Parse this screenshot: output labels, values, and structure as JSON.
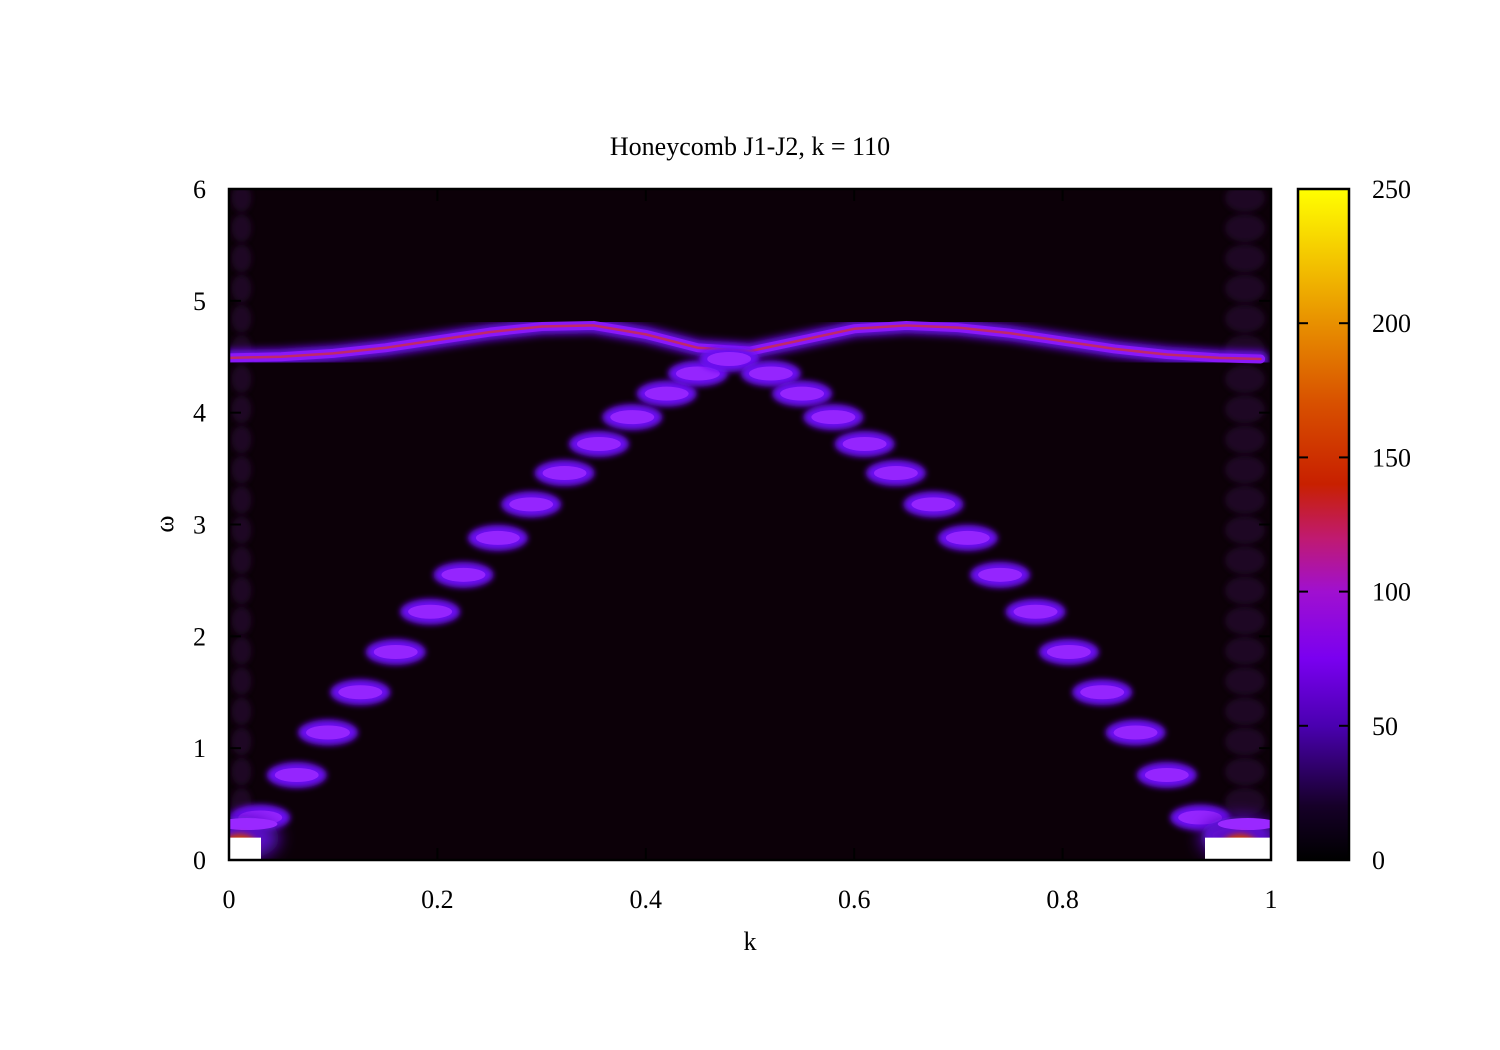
{
  "chart_data": {
    "type": "heatmap",
    "title": "Honeycomb J1-J2, k = 110",
    "xlabel": "k",
    "ylabel": "ω",
    "xlim": [
      0,
      1
    ],
    "ylim": [
      0,
      6
    ],
    "xticks": [
      "0",
      "0.2",
      "0.4",
      "0.6",
      "0.8",
      "1"
    ],
    "yticks": [
      "0",
      "1",
      "2",
      "3",
      "4",
      "5",
      "6"
    ],
    "colorbar": {
      "range": [
        0,
        250
      ],
      "ticks": [
        "0",
        "50",
        "100",
        "150",
        "200",
        "250"
      ],
      "palette": [
        "#000000",
        "#3a0070",
        "#6a00e0",
        "#9a10c8",
        "#c82020",
        "#e07000",
        "#f0b000",
        "#ffff00"
      ]
    },
    "series": [
      {
        "type": "flat-band",
        "k": [
          0.0,
          0.05,
          0.1,
          0.15,
          0.2,
          0.25,
          0.3,
          0.35,
          0.4,
          0.45,
          0.5,
          0.55,
          0.6,
          0.65,
          0.7,
          0.75,
          0.8,
          0.85,
          0.9,
          0.95,
          0.99
        ],
        "omega": [
          4.49,
          4.5,
          4.53,
          4.58,
          4.65,
          4.72,
          4.77,
          4.78,
          4.7,
          4.58,
          4.55,
          4.65,
          4.75,
          4.78,
          4.76,
          4.71,
          4.64,
          4.57,
          4.52,
          4.49,
          4.48
        ],
        "intensity": 80
      },
      {
        "type": "dispersive-points",
        "k": [
          0.03,
          0.065,
          0.095,
          0.126,
          0.16,
          0.193,
          0.225,
          0.258,
          0.29,
          0.322,
          0.355,
          0.387,
          0.42,
          0.45,
          0.48
        ],
        "omega": [
          0.38,
          0.76,
          1.14,
          1.5,
          1.86,
          2.22,
          2.55,
          2.88,
          3.18,
          3.46,
          3.72,
          3.96,
          4.17,
          4.35,
          4.48
        ],
        "intensity": 70
      },
      {
        "type": "dispersive-points",
        "k": [
          0.52,
          0.55,
          0.58,
          0.61,
          0.64,
          0.676,
          0.709,
          0.74,
          0.774,
          0.806,
          0.838,
          0.87,
          0.9,
          0.932,
          0.965
        ],
        "omega": [
          4.35,
          4.17,
          3.96,
          3.72,
          3.46,
          3.18,
          2.88,
          2.55,
          2.22,
          1.86,
          1.5,
          1.14,
          0.76,
          0.38,
          0.22
        ],
        "intensity": 70
      },
      {
        "type": "edge-hotspot",
        "k": [
          0.01,
          0.97
        ],
        "omega": [
          0.25,
          0.25
        ],
        "intensity": 190
      }
    ]
  }
}
